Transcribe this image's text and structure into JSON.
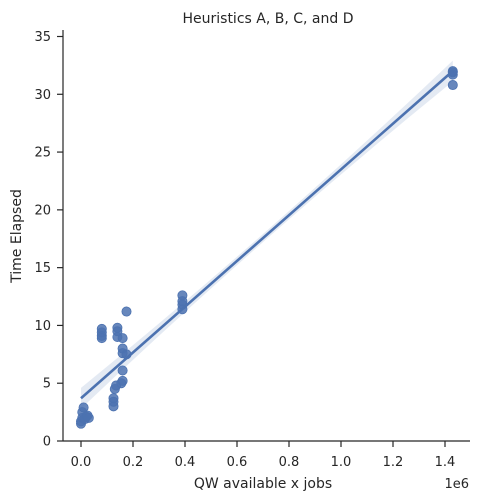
{
  "chart_data": {
    "type": "scatter",
    "title": "Heuristics A, B, C, and D",
    "xlabel": "QW available x jobs",
    "ylabel": "Time Elapsed",
    "x_offset_label": "1e6",
    "xlim": [
      -0.08,
      1.48
    ],
    "ylim": [
      0,
      36
    ],
    "x_ticks": [
      0.0,
      0.2,
      0.4,
      0.6,
      0.8,
      1.0,
      1.2,
      1.4
    ],
    "x_tick_labels": [
      "0.0",
      "0.2",
      "0.4",
      "0.6",
      "0.8",
      "1.0",
      "1.2",
      "1.4"
    ],
    "y_ticks": [
      0,
      5,
      10,
      15,
      20,
      25,
      30,
      35
    ],
    "y_tick_labels": [
      "0",
      "5",
      "10",
      "15",
      "20",
      "25",
      "30",
      "35"
    ],
    "grid": false,
    "regression": {
      "x_range": [
        0.0,
        1.43
      ],
      "intercept": 3.7,
      "slope": 19.8,
      "ci_halfwidth_ends": 0.9,
      "ci_halfwidth_mid": 0.35
    },
    "points": [
      {
        "x": 0.0,
        "y": 1.5
      },
      {
        "x": 0.0,
        "y": 1.7
      },
      {
        "x": 0.005,
        "y": 2.0
      },
      {
        "x": 0.005,
        "y": 2.5
      },
      {
        "x": 0.01,
        "y": 2.9
      },
      {
        "x": 0.015,
        "y": 1.9
      },
      {
        "x": 0.02,
        "y": 2.1
      },
      {
        "x": 0.025,
        "y": 2.2
      },
      {
        "x": 0.03,
        "y": 2.0
      },
      {
        "x": 0.08,
        "y": 8.9
      },
      {
        "x": 0.08,
        "y": 9.1
      },
      {
        "x": 0.08,
        "y": 9.4
      },
      {
        "x": 0.08,
        "y": 9.7
      },
      {
        "x": 0.125,
        "y": 3.0
      },
      {
        "x": 0.125,
        "y": 3.4
      },
      {
        "x": 0.125,
        "y": 3.7
      },
      {
        "x": 0.13,
        "y": 4.5
      },
      {
        "x": 0.135,
        "y": 4.8
      },
      {
        "x": 0.14,
        "y": 9.0
      },
      {
        "x": 0.14,
        "y": 9.5
      },
      {
        "x": 0.14,
        "y": 9.8
      },
      {
        "x": 0.155,
        "y": 5.0
      },
      {
        "x": 0.16,
        "y": 5.2
      },
      {
        "x": 0.16,
        "y": 6.1
      },
      {
        "x": 0.16,
        "y": 7.6
      },
      {
        "x": 0.16,
        "y": 8.0
      },
      {
        "x": 0.16,
        "y": 8.9
      },
      {
        "x": 0.175,
        "y": 7.5
      },
      {
        "x": 0.175,
        "y": 11.2
      },
      {
        "x": 0.39,
        "y": 11.4
      },
      {
        "x": 0.39,
        "y": 11.8
      },
      {
        "x": 0.39,
        "y": 12.1
      },
      {
        "x": 0.39,
        "y": 12.6
      },
      {
        "x": 1.43,
        "y": 30.8
      },
      {
        "x": 1.43,
        "y": 31.7
      },
      {
        "x": 1.43,
        "y": 31.9
      },
      {
        "x": 1.43,
        "y": 32.0
      }
    ]
  }
}
